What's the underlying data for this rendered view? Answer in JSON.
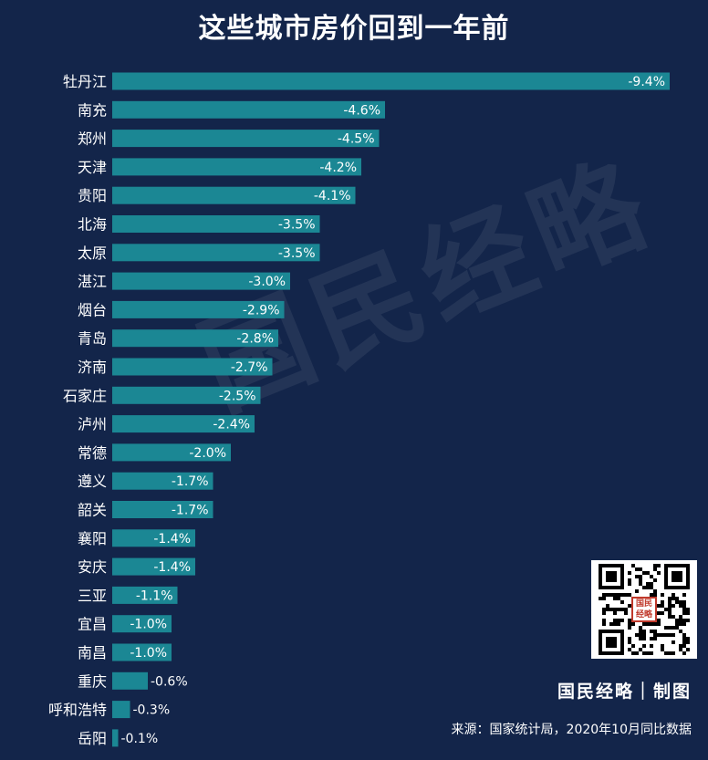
{
  "title": "这些城市房价回到一年前",
  "watermark": "国民经略",
  "brand": "国民经略｜制图",
  "source": "来源：国家统计局，2020年10月同比数据",
  "colors": {
    "background": "#13254a",
    "bar": "#1b8794",
    "text": "#ffffff"
  },
  "chart_data": {
    "type": "bar",
    "orientation": "horizontal",
    "title": "这些城市房价回到一年前",
    "xlabel": "",
    "ylabel": "",
    "unit": "%",
    "categories": [
      "牡丹江",
      "南充",
      "郑州",
      "天津",
      "贵阳",
      "北海",
      "太原",
      "湛江",
      "烟台",
      "青岛",
      "济南",
      "石家庄",
      "泸州",
      "常德",
      "遵义",
      "韶关",
      "襄阳",
      "安庆",
      "三亚",
      "宜昌",
      "南昌",
      "重庆",
      "呼和浩特",
      "岳阳"
    ],
    "values": [
      -9.4,
      -4.6,
      -4.5,
      -4.2,
      -4.1,
      -3.5,
      -3.5,
      -3.0,
      -2.9,
      -2.8,
      -2.7,
      -2.5,
      -2.4,
      -2.0,
      -1.7,
      -1.7,
      -1.4,
      -1.4,
      -1.1,
      -1.0,
      -1.0,
      -0.6,
      -0.3,
      -0.1
    ],
    "labels": [
      "-9.4%",
      "-4.6%",
      "-4.5%",
      "-4.2%",
      "-4.1%",
      "-3.5%",
      "-3.5%",
      "-3.0%",
      "-2.9%",
      "-2.8%",
      "-2.7%",
      "-2.5%",
      "-2.4%",
      "-2.0%",
      "-1.7%",
      "-1.7%",
      "-1.4%",
      "-1.4%",
      "-1.1%",
      "-1.0%",
      "-1.0%",
      "-0.6%",
      "-0.3%",
      "-0.1%"
    ],
    "grid": false,
    "legend": "none"
  }
}
